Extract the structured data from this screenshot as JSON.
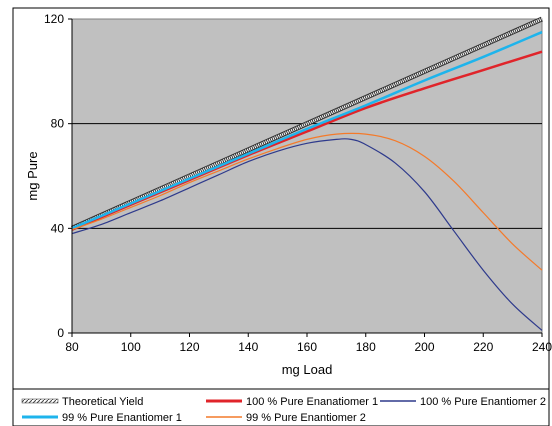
{
  "chart_data": {
    "type": "line",
    "title": "",
    "xlabel": "mg Load",
    "ylabel": "mg Pure",
    "xlim": [
      80,
      240
    ],
    "ylim": [
      0,
      120
    ],
    "xticks": [
      80,
      100,
      120,
      140,
      160,
      180,
      200,
      220,
      240
    ],
    "yticks": [
      0,
      40,
      80,
      120
    ],
    "grid": "horizontal at 40 and 80",
    "legend_placement": "bottom",
    "plot_background": "#c0c0c0",
    "series": [
      {
        "name": "Theoretical Yield",
        "color": "#555555",
        "style": "hatched",
        "points": [
          [
            80,
            40
          ],
          [
            240,
            120
          ]
        ]
      },
      {
        "name": "100 % Pure Enanatiomer 1",
        "color": "#e0242a",
        "points": [
          [
            80,
            39.5
          ],
          [
            100,
            49
          ],
          [
            120,
            58.5
          ],
          [
            140,
            68
          ],
          [
            160,
            77
          ],
          [
            180,
            86
          ],
          [
            200,
            93.5
          ],
          [
            220,
            100.5
          ],
          [
            240,
            107.5
          ]
        ]
      },
      {
        "name": "100 % Pure Enantiomer 2",
        "color": "#2e3a8c",
        "points": [
          [
            80,
            38
          ],
          [
            90,
            41.5
          ],
          [
            100,
            46
          ],
          [
            110,
            50.5
          ],
          [
            120,
            55.5
          ],
          [
            130,
            60.5
          ],
          [
            140,
            65.5
          ],
          [
            150,
            69.5
          ],
          [
            160,
            72.5
          ],
          [
            170,
            74
          ],
          [
            175,
            74
          ],
          [
            180,
            72
          ],
          [
            190,
            65
          ],
          [
            200,
            54
          ],
          [
            210,
            39
          ],
          [
            220,
            24
          ],
          [
            230,
            11
          ],
          [
            240,
            1
          ]
        ]
      },
      {
        "name": "99 % Pure Enantiomer 1",
        "color": "#1eb4ec",
        "points": [
          [
            80,
            40
          ],
          [
            100,
            49.5
          ],
          [
            120,
            59
          ],
          [
            140,
            68.5
          ],
          [
            160,
            78
          ],
          [
            180,
            87
          ],
          [
            200,
            96.5
          ],
          [
            220,
            105.5
          ],
          [
            240,
            115
          ]
        ]
      },
      {
        "name": "99 % Pure Enantiomer 2",
        "color": "#f47a2a",
        "points": [
          [
            80,
            39.5
          ],
          [
            90,
            43.5
          ],
          [
            100,
            48
          ],
          [
            110,
            52.5
          ],
          [
            120,
            57.5
          ],
          [
            130,
            62
          ],
          [
            140,
            66.5
          ],
          [
            150,
            70.5
          ],
          [
            160,
            74
          ],
          [
            170,
            76
          ],
          [
            180,
            76
          ],
          [
            190,
            73.5
          ],
          [
            200,
            67.5
          ],
          [
            210,
            58
          ],
          [
            220,
            46
          ],
          [
            230,
            34
          ],
          [
            240,
            24
          ]
        ]
      }
    ],
    "legend": [
      [
        "Theoretical Yield",
        "100 % Pure Enanatiomer 1",
        "100 % Pure Enantiomer 2"
      ],
      [
        "99 % Pure Enantiomer 1",
        "99 % Pure Enantiomer 2"
      ]
    ]
  }
}
